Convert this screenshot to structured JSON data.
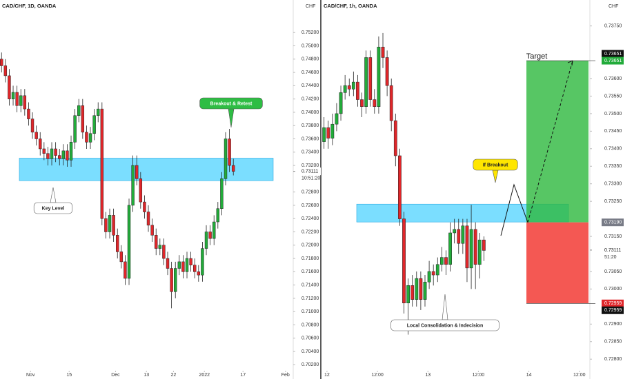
{
  "chart_data": [
    {
      "type": "candlestick",
      "title": "CAD/CHF, 1D, OANDA",
      "unit": "CHF",
      "up_color": "#22ab3a",
      "down_color": "#e0262a",
      "x": [
        0,
        1,
        2,
        3,
        4,
        5,
        6,
        7,
        8,
        9,
        10,
        11,
        12,
        13,
        14,
        15,
        16,
        17,
        18,
        19,
        20,
        21,
        22,
        23,
        24,
        25,
        26,
        27,
        28,
        29,
        30,
        31,
        32,
        33,
        34,
        35,
        36,
        37,
        38,
        39,
        40,
        41,
        42,
        43,
        44,
        45,
        46,
        47,
        48,
        49,
        50,
        51,
        52,
        53,
        54,
        55,
        56,
        57,
        58,
        59,
        60
      ],
      "open": [
        0.748,
        0.747,
        0.7455,
        0.742,
        0.743,
        0.741,
        0.7425,
        0.7405,
        0.739,
        0.737,
        0.736,
        0.7345,
        0.7338,
        0.733,
        0.7345,
        0.7335,
        0.733,
        0.7342,
        0.7328,
        0.7355,
        0.7395,
        0.741,
        0.737,
        0.7355,
        0.7368,
        0.7395,
        0.7405,
        0.724,
        0.722,
        0.7245,
        0.7215,
        0.719,
        0.7175,
        0.715,
        0.726,
        0.732,
        0.73,
        0.7265,
        0.725,
        0.723,
        0.7215,
        0.7195,
        0.72,
        0.718,
        0.7165,
        0.713,
        0.7165,
        0.7175,
        0.716,
        0.718,
        0.717,
        0.716,
        0.7155,
        0.7195,
        0.722,
        0.721,
        0.7235,
        0.7255,
        0.73,
        0.736,
        0.732
      ],
      "high": [
        0.749,
        0.748,
        0.7465,
        0.744,
        0.744,
        0.7435,
        0.7435,
        0.7415,
        0.74,
        0.738,
        0.737,
        0.7355,
        0.7348,
        0.7355,
        0.7355,
        0.7345,
        0.7352,
        0.7352,
        0.7365,
        0.7405,
        0.742,
        0.742,
        0.738,
        0.7378,
        0.7405,
        0.7415,
        0.7415,
        0.725,
        0.7255,
        0.7255,
        0.7225,
        0.72,
        0.7185,
        0.727,
        0.7335,
        0.7335,
        0.731,
        0.7275,
        0.726,
        0.724,
        0.7225,
        0.721,
        0.721,
        0.719,
        0.7175,
        0.7175,
        0.7185,
        0.7185,
        0.719,
        0.719,
        0.718,
        0.717,
        0.7205,
        0.723,
        0.723,
        0.7245,
        0.7265,
        0.731,
        0.737,
        0.7375,
        0.733
      ],
      "low": [
        0.746,
        0.7445,
        0.741,
        0.741,
        0.74,
        0.74,
        0.7395,
        0.738,
        0.736,
        0.735,
        0.7335,
        0.7328,
        0.732,
        0.732,
        0.7325,
        0.732,
        0.732,
        0.7318,
        0.7318,
        0.7345,
        0.7385,
        0.736,
        0.7345,
        0.7345,
        0.7358,
        0.7385,
        0.723,
        0.721,
        0.721,
        0.7205,
        0.718,
        0.7165,
        0.714,
        0.714,
        0.725,
        0.729,
        0.7255,
        0.724,
        0.722,
        0.7205,
        0.7185,
        0.7185,
        0.717,
        0.7155,
        0.7105,
        0.712,
        0.7155,
        0.715,
        0.715,
        0.716,
        0.715,
        0.7145,
        0.7145,
        0.7185,
        0.72,
        0.72,
        0.7225,
        0.7245,
        0.729,
        0.731,
        0.7305
      ],
      "close": [
        0.747,
        0.7455,
        0.742,
        0.743,
        0.741,
        0.7425,
        0.7405,
        0.739,
        0.737,
        0.736,
        0.7345,
        0.7338,
        0.733,
        0.7345,
        0.7335,
        0.733,
        0.7342,
        0.7328,
        0.7355,
        0.7395,
        0.741,
        0.737,
        0.7355,
        0.7368,
        0.7395,
        0.7405,
        0.724,
        0.722,
        0.7245,
        0.7215,
        0.719,
        0.7175,
        0.715,
        0.726,
        0.732,
        0.73,
        0.7265,
        0.725,
        0.723,
        0.7215,
        0.7195,
        0.72,
        0.718,
        0.7165,
        0.713,
        0.7165,
        0.7175,
        0.716,
        0.718,
        0.717,
        0.716,
        0.7155,
        0.7195,
        0.722,
        0.721,
        0.7235,
        0.7255,
        0.73,
        0.736,
        0.732,
        0.7311
      ],
      "xlim": [
        -0.4,
        75.5
      ],
      "xticks": [
        {
          "value": 7.5,
          "label": "Nov"
        },
        {
          "value": 17.5,
          "label": "15"
        },
        {
          "value": 29.5,
          "label": "Dec"
        },
        {
          "value": 37.5,
          "label": "13"
        },
        {
          "value": 44.5,
          "label": "22"
        },
        {
          "value": 52.5,
          "label": "2022"
        },
        {
          "value": 62.5,
          "label": "17"
        },
        {
          "value": 73.5,
          "label": "Feb"
        }
      ],
      "ylim": [
        0.7011,
        0.7569
      ],
      "yticks": [
        {
          "value": 0.752,
          "label": "0.75200"
        },
        {
          "value": 0.75,
          "label": "0.75000"
        },
        {
          "value": 0.748,
          "label": "0.74800"
        },
        {
          "value": 0.746,
          "label": "0.74600"
        },
        {
          "value": 0.744,
          "label": "0.74400"
        },
        {
          "value": 0.742,
          "label": "0.74200"
        },
        {
          "value": 0.74,
          "label": "0.74000"
        },
        {
          "value": 0.738,
          "label": "0.73800"
        },
        {
          "value": 0.736,
          "label": "0.73600"
        },
        {
          "value": 0.734,
          "label": "0.73400"
        },
        {
          "value": 0.732,
          "label": "0.73200"
        },
        {
          "value": 0.728,
          "label": "0.72800"
        },
        {
          "value": 0.726,
          "label": "0.72600"
        },
        {
          "value": 0.724,
          "label": "0.72400"
        },
        {
          "value": 0.722,
          "label": "0.72200"
        },
        {
          "value": 0.72,
          "label": "0.72000"
        },
        {
          "value": 0.718,
          "label": "0.71800"
        },
        {
          "value": 0.716,
          "label": "0.71600"
        },
        {
          "value": 0.714,
          "label": "0.71400"
        },
        {
          "value": 0.712,
          "label": "0.71200"
        },
        {
          "value": 0.71,
          "label": "0.71000"
        },
        {
          "value": 0.708,
          "label": "0.70800"
        },
        {
          "value": 0.706,
          "label": "0.70600"
        },
        {
          "value": 0.704,
          "label": "0.70400"
        },
        {
          "value": 0.702,
          "label": "0.70200"
        }
      ],
      "current_price": {
        "value": 0.73111,
        "label": "0.73111"
      },
      "countdown": "10:51:20",
      "zone": [
        0.7297,
        0.7331
      ],
      "annotations": [
        "Breakout & Retest",
        "Key Level"
      ]
    },
    {
      "type": "candlestick",
      "title": "CAD/CHF, 1h, OANDA",
      "unit": "CHF",
      "up_color": "#22ab3a",
      "down_color": "#e0262a",
      "x": [
        0,
        1,
        2,
        3,
        4,
        5,
        6,
        7,
        8,
        9,
        10,
        11,
        12,
        13,
        14,
        15,
        16,
        17,
        18,
        19,
        20,
        21,
        22,
        23,
        24,
        25,
        26,
        27,
        28,
        29,
        30,
        31,
        32,
        33,
        34,
        35,
        36,
        37,
        38
      ],
      "open": [
        0.7342,
        0.7346,
        0.7343,
        0.7347,
        0.735,
        0.7356,
        0.7358,
        0.7357,
        0.7359,
        0.7354,
        0.7352,
        0.7366,
        0.7354,
        0.7352,
        0.7369,
        0.7366,
        0.7358,
        0.7348,
        0.7338,
        0.732,
        0.7296,
        0.7301,
        0.7297,
        0.7303,
        0.7297,
        0.7302,
        0.7305,
        0.7304,
        0.7307,
        0.7309,
        0.7307,
        0.7316,
        0.7317,
        0.7313,
        0.7318,
        0.7306,
        0.7317,
        0.7307,
        0.7314
      ],
      "high": [
        0.7349,
        0.7348,
        0.735,
        0.7353,
        0.7358,
        0.7361,
        0.736,
        0.7362,
        0.7361,
        0.7356,
        0.7368,
        0.7368,
        0.7357,
        0.7372,
        0.7373,
        0.7368,
        0.736,
        0.735,
        0.734,
        0.7322,
        0.7303,
        0.7304,
        0.7305,
        0.7305,
        0.7304,
        0.7308,
        0.7307,
        0.7309,
        0.7312,
        0.7311,
        0.7319,
        0.732,
        0.732,
        0.732,
        0.732,
        0.7324,
        0.7319,
        0.7316,
        0.7315
      ],
      "low": [
        0.734,
        0.734,
        0.7341,
        0.7345,
        0.7348,
        0.7354,
        0.7355,
        0.7355,
        0.7352,
        0.7349,
        0.735,
        0.7352,
        0.735,
        0.735,
        0.7363,
        0.7355,
        0.7345,
        0.7335,
        0.7318,
        0.7293,
        0.7287,
        0.7295,
        0.7295,
        0.7294,
        0.7295,
        0.73,
        0.7301,
        0.7302,
        0.7305,
        0.7304,
        0.7305,
        0.7313,
        0.731,
        0.731,
        0.7302,
        0.73,
        0.73,
        0.7303,
        0.7308
      ],
      "close": [
        0.7346,
        0.7343,
        0.7347,
        0.735,
        0.7356,
        0.7358,
        0.7357,
        0.7359,
        0.7354,
        0.7352,
        0.7366,
        0.7354,
        0.7352,
        0.7369,
        0.7366,
        0.7358,
        0.7348,
        0.7338,
        0.732,
        0.7296,
        0.7301,
        0.7297,
        0.7303,
        0.7297,
        0.7302,
        0.7305,
        0.7304,
        0.7307,
        0.7309,
        0.7307,
        0.7316,
        0.7317,
        0.7313,
        0.7318,
        0.7306,
        0.7317,
        0.7307,
        0.7314,
        0.7311
      ],
      "xlim": [
        -0.6,
        63.2
      ],
      "xticks": [
        {
          "value": 0.7,
          "label": "12"
        },
        {
          "value": 12.7,
          "label": "12:00"
        },
        {
          "value": 24.7,
          "label": "13"
        },
        {
          "value": 36.7,
          "label": "12:00"
        },
        {
          "value": 48.7,
          "label": "14"
        },
        {
          "value": 60.7,
          "label": "12:00"
        }
      ],
      "ylim": [
        0.72767,
        0.73824
      ],
      "yticks": [
        {
          "value": 0.7375,
          "label": "0.73750"
        },
        {
          "value": 0.736,
          "label": "0.73600"
        },
        {
          "value": 0.7355,
          "label": "0.73550"
        },
        {
          "value": 0.735,
          "label": "0.73500"
        },
        {
          "value": 0.7345,
          "label": "0.73450"
        },
        {
          "value": 0.734,
          "label": "0.73400"
        },
        {
          "value": 0.7335,
          "label": "0.73350"
        },
        {
          "value": 0.733,
          "label": "0.73300"
        },
        {
          "value": 0.7325,
          "label": "0.73250"
        },
        {
          "value": 0.7315,
          "label": "0.73150"
        },
        {
          "value": 0.7305,
          "label": "0.73050"
        },
        {
          "value": 0.73,
          "label": "0.73000"
        },
        {
          "value": 0.729,
          "label": "0.72900"
        },
        {
          "value": 0.7285,
          "label": "0.72850"
        },
        {
          "value": 0.728,
          "label": "0.72800"
        }
      ],
      "current_price": {
        "value": 0.73111,
        "label": "0.73111"
      },
      "countdown": "51:20",
      "zone": [
        0.73191,
        0.73242
      ],
      "position": {
        "target": {
          "value": 0.73651,
          "label": "0.73651"
        },
        "entry": {
          "value": 0.7319,
          "label": "0.73190"
        },
        "stop": {
          "value": 0.72959,
          "label": "0.72959"
        }
      },
      "annotations": [
        "If Breakout",
        "Local Consolidation & Indecision",
        "Target"
      ]
    }
  ]
}
